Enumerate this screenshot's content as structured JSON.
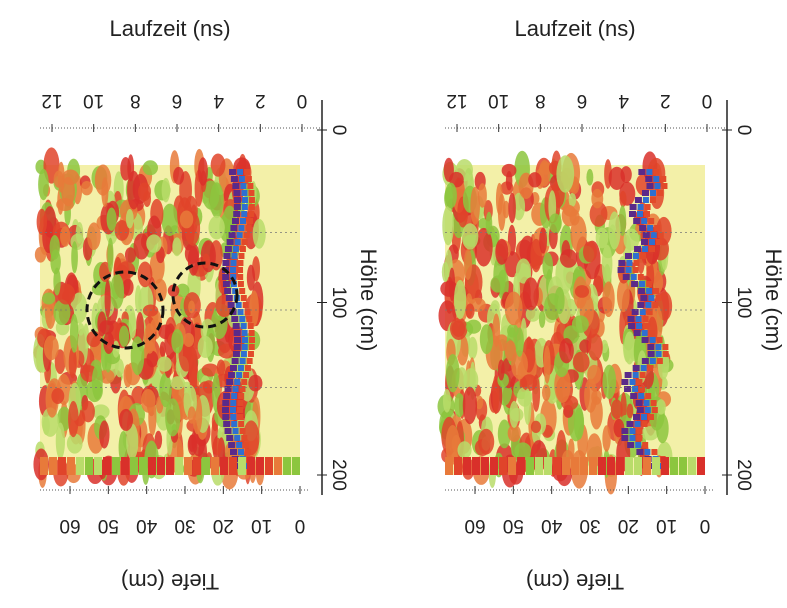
{
  "panels": [
    {
      "time_label": "Laufzeit (ns)",
      "time_ticks": [
        0,
        2,
        4,
        6,
        8,
        10,
        12
      ],
      "position_label": "Höhe (cm)",
      "position_ticks": [
        0,
        100,
        200
      ],
      "depth_label": "Tiefe (cm)",
      "depth_ticks": [
        0,
        10,
        20,
        30,
        40,
        50,
        60
      ]
    },
    {
      "time_label": "Laufzeit (ns)",
      "time_ticks": [
        0,
        2,
        4,
        6,
        8,
        10,
        12
      ],
      "position_label": "Höhe (cm)",
      "position_ticks": [
        0,
        100,
        200
      ],
      "depth_label": "Tiefe (cm)",
      "depth_ticks": [
        0,
        10,
        20,
        30,
        40,
        50,
        60
      ]
    }
  ]
}
